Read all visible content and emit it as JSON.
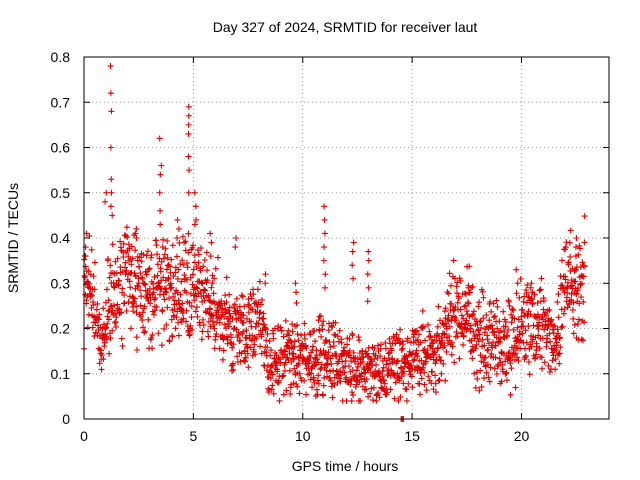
{
  "chart_data": {
    "type": "scatter",
    "title": "Day 327 of 2024, SRMTID for receiver laut",
    "xlabel": "GPS time / hours",
    "ylabel": "SRMTID / TECUs",
    "xlim": [
      0,
      24
    ],
    "ylim": [
      0,
      0.8
    ],
    "xticks": [
      0,
      5,
      10,
      15,
      20
    ],
    "xtick_labels": [
      "0",
      "5",
      "10",
      "15",
      "20"
    ],
    "yticks": [
      0,
      0.1,
      0.2,
      0.3,
      0.4,
      0.5,
      0.6,
      0.7,
      0.8
    ],
    "ytick_labels": [
      "0",
      "0.1",
      "0.2",
      "0.3",
      "0.4",
      "0.5",
      "0.6",
      "0.7",
      "0.8"
    ],
    "grid": true,
    "marker": "+",
    "series_color": "#e00000",
    "data_range_hours": [
      0,
      22.9
    ],
    "profile": [
      [
        0.0,
        0.32
      ],
      [
        0.5,
        0.24
      ],
      [
        0.8,
        0.17
      ],
      [
        1.2,
        0.26
      ],
      [
        1.6,
        0.31
      ],
      [
        2.0,
        0.32
      ],
      [
        2.5,
        0.3
      ],
      [
        3.0,
        0.27
      ],
      [
        3.5,
        0.3
      ],
      [
        4.0,
        0.28
      ],
      [
        4.5,
        0.27
      ],
      [
        5.0,
        0.29
      ],
      [
        5.5,
        0.26
      ],
      [
        6.0,
        0.24
      ],
      [
        6.5,
        0.22
      ],
      [
        7.0,
        0.18
      ],
      [
        7.5,
        0.2
      ],
      [
        8.0,
        0.22
      ],
      [
        8.5,
        0.13
      ],
      [
        9.0,
        0.13
      ],
      [
        9.5,
        0.15
      ],
      [
        10.0,
        0.13
      ],
      [
        10.5,
        0.13
      ],
      [
        11.0,
        0.14
      ],
      [
        11.5,
        0.13
      ],
      [
        12.0,
        0.12
      ],
      [
        12.5,
        0.12
      ],
      [
        13.0,
        0.11
      ],
      [
        13.5,
        0.1
      ],
      [
        14.0,
        0.11
      ],
      [
        14.5,
        0.12
      ],
      [
        15.0,
        0.12
      ],
      [
        15.5,
        0.14
      ],
      [
        16.0,
        0.14
      ],
      [
        16.5,
        0.17
      ],
      [
        17.0,
        0.24
      ],
      [
        17.5,
        0.22
      ],
      [
        18.0,
        0.18
      ],
      [
        18.5,
        0.17
      ],
      [
        19.0,
        0.17
      ],
      [
        19.5,
        0.16
      ],
      [
        20.0,
        0.2
      ],
      [
        20.5,
        0.19
      ],
      [
        21.0,
        0.21
      ],
      [
        21.5,
        0.17
      ],
      [
        22.0,
        0.29
      ],
      [
        22.5,
        0.29
      ],
      [
        22.9,
        0.33
      ]
    ],
    "spikes": [
      {
        "t": 0.1,
        "values": [
          0.41,
          0.38,
          0.36
        ]
      },
      {
        "t": 1.25,
        "values": [
          0.78,
          0.72,
          0.68,
          0.6,
          0.53,
          0.5,
          0.47,
          0.45
        ]
      },
      {
        "t": 3.5,
        "values": [
          0.62,
          0.56,
          0.54,
          0.5,
          0.46,
          0.43
        ]
      },
      {
        "t": 4.8,
        "values": [
          0.69,
          0.67,
          0.65,
          0.63,
          0.58,
          0.55,
          0.5
        ]
      },
      {
        "t": 5.1,
        "values": [
          0.5,
          0.47,
          0.44,
          0.43
        ]
      },
      {
        "t": 11.0,
        "values": [
          0.47,
          0.44,
          0.41,
          0.38,
          0.35,
          0.32,
          0.29
        ]
      },
      {
        "t": 12.3,
        "values": [
          0.39,
          0.37,
          0.34,
          0.31
        ]
      },
      {
        "t": 13.0,
        "values": [
          0.37,
          0.35,
          0.32,
          0.29,
          0.26
        ]
      },
      {
        "t": 22.5,
        "values": [
          0.4,
          0.38,
          0.36
        ]
      }
    ],
    "outliers": [
      {
        "t": 1.0,
        "values": [
          0.5,
          0.48
        ]
      },
      {
        "t": 2.4,
        "values": [
          0.42,
          0.41,
          0.4
        ]
      },
      {
        "t": 4.3,
        "values": [
          0.44,
          0.42,
          0.4
        ]
      },
      {
        "t": 5.8,
        "values": [
          0.41,
          0.39,
          0.36
        ]
      },
      {
        "t": 6.9,
        "values": [
          0.4,
          0.38
        ]
      },
      {
        "t": 8.3,
        "values": [
          0.32,
          0.3
        ]
      },
      {
        "t": 9.7,
        "values": [
          0.3,
          0.28
        ]
      },
      {
        "t": 17.6,
        "values": [
          0.29,
          0.28
        ]
      },
      {
        "t": 19.8,
        "values": [
          0.33,
          0.3
        ]
      },
      {
        "t": 20.5,
        "values": [
          0.3,
          0.28
        ]
      }
    ],
    "zero_points": [
      14.5,
      14.55,
      14.6
    ]
  }
}
